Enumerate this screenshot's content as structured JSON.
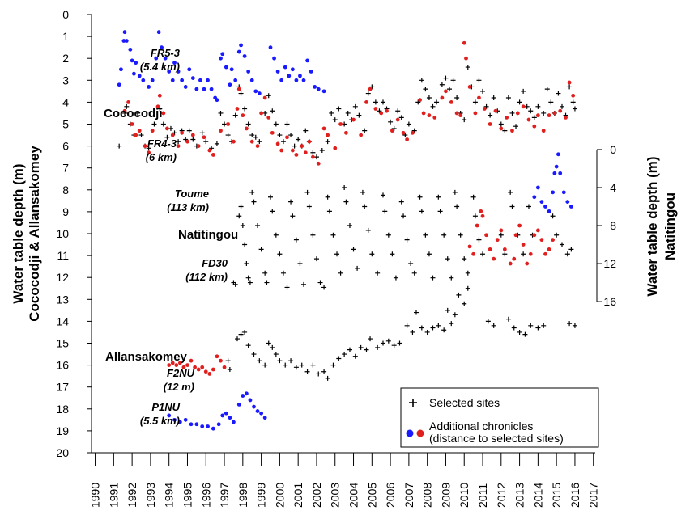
{
  "chart_data": {
    "type": "scatter",
    "ylabel": [
      "Water table depth (m)",
      "Cococodji & Allansakomey"
    ],
    "y2label": [
      "Water table depth (m)",
      "Natitingou"
    ],
    "xlim": [
      1989.8,
      2017.1
    ],
    "xticks": [
      1990,
      1991,
      1992,
      1993,
      1994,
      1995,
      1996,
      1997,
      1998,
      1999,
      2000,
      2001,
      2002,
      2003,
      2004,
      2005,
      2006,
      2007,
      2008,
      2009,
      2010,
      2011,
      2012,
      2013,
      2014,
      2015,
      2016,
      2017
    ],
    "ylim": [
      0,
      20
    ],
    "yticks": [
      0,
      1,
      2,
      3,
      4,
      5,
      6,
      7,
      8,
      9,
      10,
      11,
      12,
      13,
      14,
      15,
      16,
      17,
      18,
      19,
      20
    ],
    "y2lim": [
      -14.2,
      31.9
    ],
    "y2ticks": [
      0,
      4,
      8,
      12,
      16
    ],
    "legend": {
      "selected": "Selected sites",
      "additional": [
        "Additional chronicles",
        "(distance to selected sites)"
      ],
      "colors": [
        "#1a1aff",
        "#e0201e"
      ]
    },
    "series": [
      {
        "name": "FR5-3",
        "distance": "(5.4 km)",
        "color": "#1a1aff",
        "marker": "o",
        "axis": "y",
        "x": [
          1991.3,
          1991.4,
          1991.55,
          1991.6,
          1991.7,
          1991.9,
          1992.0,
          1992.1,
          1992.2,
          1992.4,
          1992.6,
          1992.9,
          1993.1,
          1993.3,
          1993.45,
          1993.6,
          1993.8,
          1994.0,
          1994.2,
          1994.3,
          1994.5,
          1994.7,
          1994.9,
          1995.1,
          1995.3,
          1995.5,
          1995.7,
          1995.9,
          1996.1,
          1996.3,
          1996.5,
          1996.6,
          1996.8,
          1996.9,
          1997.1,
          1997.3,
          1997.4,
          1997.6,
          1997.8,
          1997.9,
          1998.1,
          1998.3,
          1998.5,
          1998.7,
          1998.9,
          1999.5,
          1999.7,
          1999.9,
          2000.1,
          2000.3,
          2000.5,
          2000.7,
          2000.9,
          2001.1,
          2001.3,
          2001.5,
          2001.7,
          2001.9,
          2002.1,
          2002.4
        ],
        "values": [
          3.2,
          2.5,
          1.2,
          0.8,
          1.2,
          1.6,
          2.1,
          2.7,
          2.2,
          2.8,
          3.0,
          3.3,
          3.0,
          2.0,
          0.8,
          1.5,
          2.0,
          2.6,
          3.0,
          2.2,
          2.6,
          3.0,
          3.3,
          2.5,
          2.9,
          3.4,
          3.0,
          3.4,
          3.0,
          3.4,
          3.8,
          3.9,
          2.0,
          1.8,
          2.4,
          3.2,
          2.5,
          3.0,
          1.7,
          1.4,
          1.9,
          2.6,
          3.0,
          3.5,
          3.6,
          1.5,
          2.0,
          2.6,
          3.0,
          2.4,
          2.8,
          2.5,
          3.0,
          2.8,
          3.0,
          2.1,
          2.6,
          3.3,
          3.4,
          3.5
        ]
      },
      {
        "name": "Cococodji",
        "color": "#000000",
        "marker": "+",
        "axis": "y",
        "x": [
          1991.3,
          1991.6,
          1991.7,
          1991.9,
          1992.1,
          1992.3,
          1992.5,
          1992.7,
          1992.9,
          1993.2,
          1993.5,
          1993.7,
          1993.9,
          1994.1,
          1994.3,
          1994.5,
          1994.7,
          1994.9,
          1995.1,
          1995.3,
          1995.5,
          1995.8,
          1996.0,
          1996.3,
          1996.6,
          1996.8,
          1997.0,
          1997.2,
          1997.4,
          1997.6,
          1997.8,
          1997.9,
          1998.1,
          1998.3,
          1998.5,
          1998.7,
          1998.9,
          1999.2,
          1999.4,
          1999.6,
          1999.8,
          2000.0,
          2000.2,
          2000.4,
          2000.6,
          2000.8,
          2001.0,
          2001.2,
          2001.4,
          2001.6,
          2001.8,
          2002.0,
          2002.3,
          2002.6,
          2002.8,
          2003.0,
          2003.2,
          2003.5,
          2003.7,
          2003.9,
          2004.1,
          2004.3,
          2004.6,
          2004.8,
          2005.0,
          2005.2,
          2005.4,
          2005.6,
          2005.8,
          2006.0,
          2006.2,
          2006.4,
          2006.6,
          2006.8,
          2007.0,
          2007.3,
          2007.5,
          2007.7,
          2007.9,
          2008.1,
          2008.3,
          2008.5,
          2008.8,
          2009.0,
          2009.2,
          2009.4,
          2009.6,
          2009.8,
          2010.0,
          2010.2,
          2010.4,
          2010.6,
          2010.8,
          2011.0,
          2011.2,
          2011.4,
          2011.6,
          2011.8,
          2012.0,
          2012.2,
          2012.4,
          2012.6,
          2012.8,
          2013.0,
          2013.2,
          2013.4,
          2013.6,
          2013.8,
          2014.0,
          2014.3,
          2014.5,
          2014.7,
          2014.9,
          2015.1,
          2015.3,
          2015.5,
          2015.7,
          2015.9,
          2016.0
        ],
        "values": [
          6.0,
          4.5,
          4.2,
          5.0,
          5.5,
          4.5,
          5.5,
          6.0,
          6.1,
          5.0,
          4.3,
          5.0,
          5.6,
          5.2,
          5.4,
          5.8,
          5.3,
          5.7,
          5.3,
          5.7,
          6.0,
          5.4,
          5.8,
          6.1,
          5.9,
          4.5,
          5.0,
          5.5,
          5.8,
          4.6,
          3.3,
          3.6,
          4.3,
          5.0,
          5.5,
          5.6,
          5.8,
          4.5,
          3.7,
          4.4,
          5.0,
          5.5,
          5.8,
          5.0,
          5.5,
          6.0,
          5.7,
          6.0,
          5.3,
          5.8,
          6.3,
          6.5,
          6.2,
          5.8,
          4.5,
          4.8,
          4.3,
          5.0,
          4.5,
          4.8,
          4.2,
          4.6,
          5.3,
          3.6,
          3.3,
          4.0,
          4.4,
          4.0,
          4.3,
          4.9,
          5.2,
          4.4,
          4.7,
          5.5,
          5.0,
          5.3,
          4.0,
          3.0,
          3.4,
          3.8,
          4.2,
          4.0,
          3.2,
          2.9,
          3.4,
          3.0,
          3.8,
          4.5,
          4.8,
          2.4,
          3.3,
          4.0,
          3.0,
          3.5,
          4.2,
          4.6,
          3.8,
          4.4,
          5.0,
          5.3,
          3.8,
          4.5,
          5.1,
          4.0,
          3.5,
          4.2,
          4.4,
          4.7,
          4.2,
          4.5,
          3.4,
          4.0,
          4.5,
          3.6,
          4.2,
          4.6,
          3.3,
          4.0,
          4.3
        ]
      },
      {
        "name": "FR4-3",
        "distance": "(6 km)",
        "color": "#e0201e",
        "marker": "o",
        "axis": "y",
        "x": [
          1991.6,
          1991.8,
          1992.0,
          1992.2,
          1992.4,
          1992.7,
          1992.9,
          1993.1,
          1993.4,
          1993.5,
          1993.7,
          1993.9,
          1994.2,
          1994.5,
          1994.7,
          1995.0,
          1995.3,
          1995.6,
          1995.9,
          1996.2,
          1996.4,
          1996.8,
          1997.2,
          1997.5,
          1997.7,
          1997.8,
          1998.0,
          1998.2,
          1998.5,
          1998.8,
          1999.0,
          1999.2,
          1999.4,
          1999.6,
          1999.9,
          2000.1,
          2000.4,
          2000.7,
          2000.9,
          2001.2,
          2001.4,
          2001.6,
          2001.8,
          2002.1,
          2002.4,
          2002.6,
          2003.0,
          2003.3,
          2003.6,
          2004.0,
          2004.4,
          2004.7,
          2004.9,
          2005.2,
          2005.5,
          2005.8,
          2006.1,
          2006.4,
          2006.7,
          2006.9,
          2007.2,
          2007.6,
          2007.8,
          2008.1,
          2008.4,
          2008.8,
          2009.0,
          2009.3,
          2009.6,
          2009.8,
          2010.0,
          2010.1,
          2010.3,
          2010.6,
          2010.8,
          2011.1,
          2011.4,
          2011.7,
          2012.0,
          2012.3,
          2012.6,
          2012.9,
          2013.2,
          2013.5,
          2013.8,
          2014.0,
          2014.3,
          2014.6,
          2014.9,
          2015.2,
          2015.5,
          2015.7,
          2015.9
        ],
        "values": [
          4.4,
          4.0,
          5.0,
          5.5,
          5.3,
          6.0,
          6.3,
          5.3,
          4.2,
          3.7,
          4.5,
          5.2,
          5.5,
          6.0,
          5.4,
          5.8,
          5.5,
          6.0,
          5.6,
          6.2,
          6.4,
          5.3,
          5.0,
          5.8,
          4.3,
          3.4,
          4.6,
          5.2,
          5.8,
          6.0,
          4.5,
          3.8,
          4.7,
          5.4,
          5.9,
          6.2,
          5.6,
          6.2,
          6.4,
          6.0,
          6.3,
          5.8,
          6.5,
          6.8,
          5.2,
          5.5,
          6.1,
          5.0,
          5.4,
          4.8,
          5.5,
          4.0,
          3.4,
          4.3,
          4.5,
          4.4,
          5.3,
          4.8,
          5.4,
          5.7,
          5.4,
          3.9,
          4.5,
          4.6,
          4.7,
          3.8,
          3.5,
          4.0,
          4.5,
          4.6,
          1.3,
          2.0,
          3.3,
          4.5,
          3.8,
          4.3,
          5.0,
          4.4,
          5.2,
          4.7,
          5.3,
          4.5,
          4.2,
          4.8,
          5.1,
          4.6,
          5.3,
          4.6,
          4.5,
          4.4,
          4.7,
          3.1,
          3.7
        ]
      },
      {
        "name": "Toume",
        "distance": "(113 km)",
        "color": "#1a1aff",
        "marker": "o",
        "axis": "y2",
        "x": [
          2013.8,
          2014.0,
          2014.2,
          2014.4,
          2014.6,
          2014.8,
          2014.9,
          2015.0,
          2015.1,
          2015.2,
          2015.4,
          2015.6,
          2015.8
        ],
        "values": [
          5,
          4,
          5.5,
          6,
          6.5,
          4.5,
          2.5,
          1.8,
          0.5,
          2.5,
          4.5,
          5.5,
          6.0
        ]
      },
      {
        "name": "Natitingou",
        "color": "#000000",
        "marker": "+",
        "axis": "y2",
        "x": [
          1997.5,
          1997.6,
          1997.8,
          1997.9,
          1998.0,
          1998.1,
          1998.2,
          1998.3,
          1998.4,
          1998.5,
          1998.6,
          1998.8,
          1999.0,
          1999.2,
          1999.3,
          1999.5,
          1999.6,
          1999.8,
          2000.0,
          2000.2,
          2000.4,
          2000.6,
          2000.7,
          2000.9,
          2001.1,
          2001.3,
          2001.5,
          2001.6,
          2001.8,
          2002.0,
          2002.2,
          2002.4,
          2002.6,
          2002.7,
          2002.9,
          2003.1,
          2003.3,
          2003.5,
          2003.6,
          2003.8,
          2004.0,
          2004.2,
          2004.5,
          2004.6,
          2004.8,
          2005.0,
          2005.3,
          2005.6,
          2005.7,
          2005.9,
          2006.1,
          2006.3,
          2006.6,
          2006.7,
          2006.9,
          2007.1,
          2007.3,
          2007.6,
          2007.7,
          2007.9,
          2008.1,
          2008.3,
          2008.6,
          2008.7,
          2008.9,
          2009.1,
          2009.3,
          2009.5,
          2009.6,
          2009.8,
          2010.0,
          2010.2,
          2010.5,
          2010.6,
          2010.8,
          2011.0,
          2012.0,
          2012.2,
          2012.5,
          2012.6,
          2012.9,
          2013.2,
          2013.5,
          2013.7,
          2014.8,
          2015.0,
          2015.3,
          2015.6,
          2015.8
        ],
        "values": [
          14.0,
          14.2,
          7,
          6,
          8,
          10,
          12,
          13.5,
          14,
          4.5,
          5.5,
          8,
          10.5,
          13,
          14,
          5,
          6.5,
          9,
          11,
          13,
          14.5,
          5.5,
          7,
          9.5,
          12,
          14.2,
          4.5,
          6,
          9,
          11.5,
          14,
          14.5,
          5,
          6.5,
          9,
          11,
          13,
          4,
          5.5,
          8,
          10.5,
          12.5,
          4.5,
          6,
          8.5,
          11,
          13,
          4.8,
          6.5,
          9,
          11,
          13.5,
          5.5,
          7,
          9.5,
          12,
          13,
          5,
          6.5,
          9,
          11,
          13.5,
          5,
          6.5,
          9,
          11.5,
          13.5,
          4.5,
          6,
          9,
          11.5,
          13,
          5,
          7,
          9.5,
          11,
          9,
          11,
          4.5,
          6,
          9,
          11,
          6,
          9,
          7,
          9,
          10,
          11,
          10.5
        ]
      },
      {
        "name": "FD30",
        "distance": "(112 km)",
        "color": "#e0201e",
        "marker": "o",
        "axis": "y2",
        "x": [
          2010.3,
          2010.5,
          2010.7,
          2010.9,
          2011.0,
          2011.2,
          2011.4,
          2011.6,
          2011.8,
          2012.0,
          2012.2,
          2012.5,
          2012.7,
          2012.8,
          2013.0,
          2013.2,
          2013.4,
          2013.6,
          2013.8,
          2014.0,
          2014.2,
          2014.4,
          2014.6,
          2014.8
        ],
        "values": [
          10.2,
          11,
          8,
          6.5,
          7,
          9,
          10.5,
          11.5,
          9.5,
          8.5,
          10.5,
          12,
          11.5,
          9,
          8,
          10,
          12,
          11,
          9,
          8.5,
          9.5,
          11,
          10.5,
          9.5
        ]
      },
      {
        "name": "Allansakomey",
        "color": "#000000",
        "marker": "+",
        "axis": "y",
        "x": [
          1997.2,
          1997.3,
          1997.7,
          1997.9,
          1998.1,
          1998.3,
          1998.6,
          1998.9,
          1999.2,
          1999.4,
          1999.6,
          1999.8,
          2000.0,
          2000.3,
          2000.6,
          2000.9,
          2001.2,
          2001.5,
          2001.8,
          2002.1,
          2002.4,
          2002.6,
          2002.9,
          2003.2,
          2003.5,
          2003.8,
          2004.1,
          2004.4,
          2004.7,
          2004.9,
          2005.3,
          2005.6,
          2005.9,
          2006.2,
          2006.5,
          2006.9,
          2007.2,
          2007.4,
          2007.7,
          2008.0,
          2008.3,
          2008.6,
          2008.9,
          2009.1,
          2009.3,
          2009.5,
          2009.7,
          2010.0,
          2010.2,
          2011.3,
          2011.6,
          2012.4,
          2012.7,
          2013.0,
          2013.3,
          2013.6,
          2014.0,
          2014.3,
          2015.7,
          2016.0
        ],
        "values": [
          15.8,
          16.2,
          14.8,
          14.6,
          14.5,
          15.1,
          15.5,
          15.8,
          16.0,
          15.0,
          15.2,
          15.5,
          15.8,
          16.0,
          15.8,
          16.1,
          16.0,
          16.3,
          16.0,
          16.4,
          16.3,
          16.6,
          16.0,
          15.7,
          15.5,
          15.3,
          15.6,
          15.2,
          15.3,
          14.8,
          15.2,
          15.0,
          14.9,
          15.1,
          15.0,
          14.2,
          14.5,
          13.6,
          14.3,
          14.5,
          14.3,
          14.2,
          14.4,
          13.5,
          14.1,
          13.7,
          12.8,
          13.2,
          12.5,
          14.0,
          14.2,
          13.9,
          14.3,
          14.5,
          14.6,
          14.2,
          14.3,
          14.2,
          14.1,
          14.2
        ]
      },
      {
        "name": "F2NU",
        "distance": "(12 m)",
        "color": "#e0201e",
        "marker": "o",
        "axis": "y",
        "x": [
          1994.0,
          1994.2,
          1994.4,
          1994.6,
          1994.8,
          1995.0,
          1995.2,
          1995.4,
          1995.6,
          1995.8,
          1996.0,
          1996.2,
          1996.4,
          1996.6,
          1996.8,
          1997.0
        ],
        "values": [
          16.0,
          15.9,
          16.0,
          15.9,
          16.1,
          16.0,
          15.8,
          16.1,
          16.2,
          16.1,
          16.3,
          16.4,
          16.2,
          15.6,
          15.8,
          16.1
        ]
      },
      {
        "name": "P1NU",
        "distance": "(5.5 km)",
        "color": "#1a1aff",
        "marker": "o",
        "axis": "y",
        "x": [
          1994.0,
          1994.3,
          1994.6,
          1994.9,
          1995.2,
          1995.5,
          1995.8,
          1996.1,
          1996.4,
          1996.7,
          1996.9,
          1997.1,
          1997.3,
          1997.5,
          1997.8,
          1998.0,
          1998.2,
          1998.4,
          1998.6,
          1998.8,
          1999.0,
          1999.2
        ],
        "values": [
          18.3,
          18.5,
          18.6,
          18.5,
          18.7,
          18.7,
          18.8,
          18.8,
          18.9,
          18.7,
          18.3,
          18.2,
          18.4,
          18.6,
          17.8,
          17.4,
          17.3,
          17.6,
          17.9,
          18.1,
          18.2,
          18.4
        ]
      }
    ]
  }
}
